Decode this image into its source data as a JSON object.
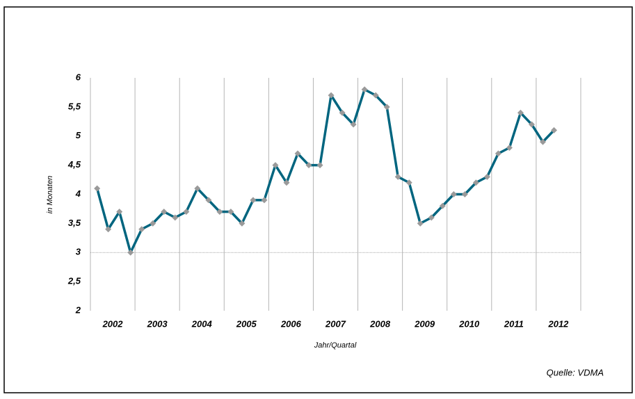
{
  "chart_data": {
    "type": "line",
    "y_label": "in Monaten",
    "x_label": "Jahr/Quartal",
    "source": "Quelle: VDMA",
    "categories": [
      "2002",
      null,
      null,
      null,
      "2003",
      null,
      null,
      null,
      "2004",
      null,
      null,
      null,
      "2005",
      null,
      null,
      null,
      "2006",
      null,
      null,
      null,
      "2007",
      null,
      null,
      null,
      "2008",
      null,
      null,
      null,
      "2009",
      null,
      null,
      null,
      "2010",
      null,
      null,
      null,
      "2011",
      null,
      null,
      null,
      "2012",
      null
    ],
    "values": [
      4.1,
      3.4,
      3.7,
      3.0,
      3.4,
      3.5,
      3.7,
      3.6,
      3.7,
      4.1,
      3.9,
      3.7,
      3.7,
      3.5,
      3.9,
      3.9,
      4.5,
      4.2,
      4.7,
      4.5,
      4.5,
      5.7,
      5.4,
      5.2,
      5.8,
      5.7,
      5.5,
      4.3,
      4.2,
      3.5,
      3.6,
      3.8,
      4.0,
      4.0,
      4.2,
      4.3,
      4.7,
      4.8,
      5.4,
      5.2,
      4.9,
      5.1
    ],
    "color": "#00657f",
    "marker_color": "#9a9a9a",
    "ylim": [
      2,
      6
    ],
    "yticks": [
      2,
      {
        "value": 2.5,
        "label": "2,5"
      },
      3,
      {
        "value": 3.5,
        "label": "3,5"
      },
      4,
      {
        "value": 4.5,
        "label": "4,5"
      },
      5,
      {
        "value": 5.5,
        "label": "5,5"
      },
      6
    ],
    "reference_line": 3
  }
}
